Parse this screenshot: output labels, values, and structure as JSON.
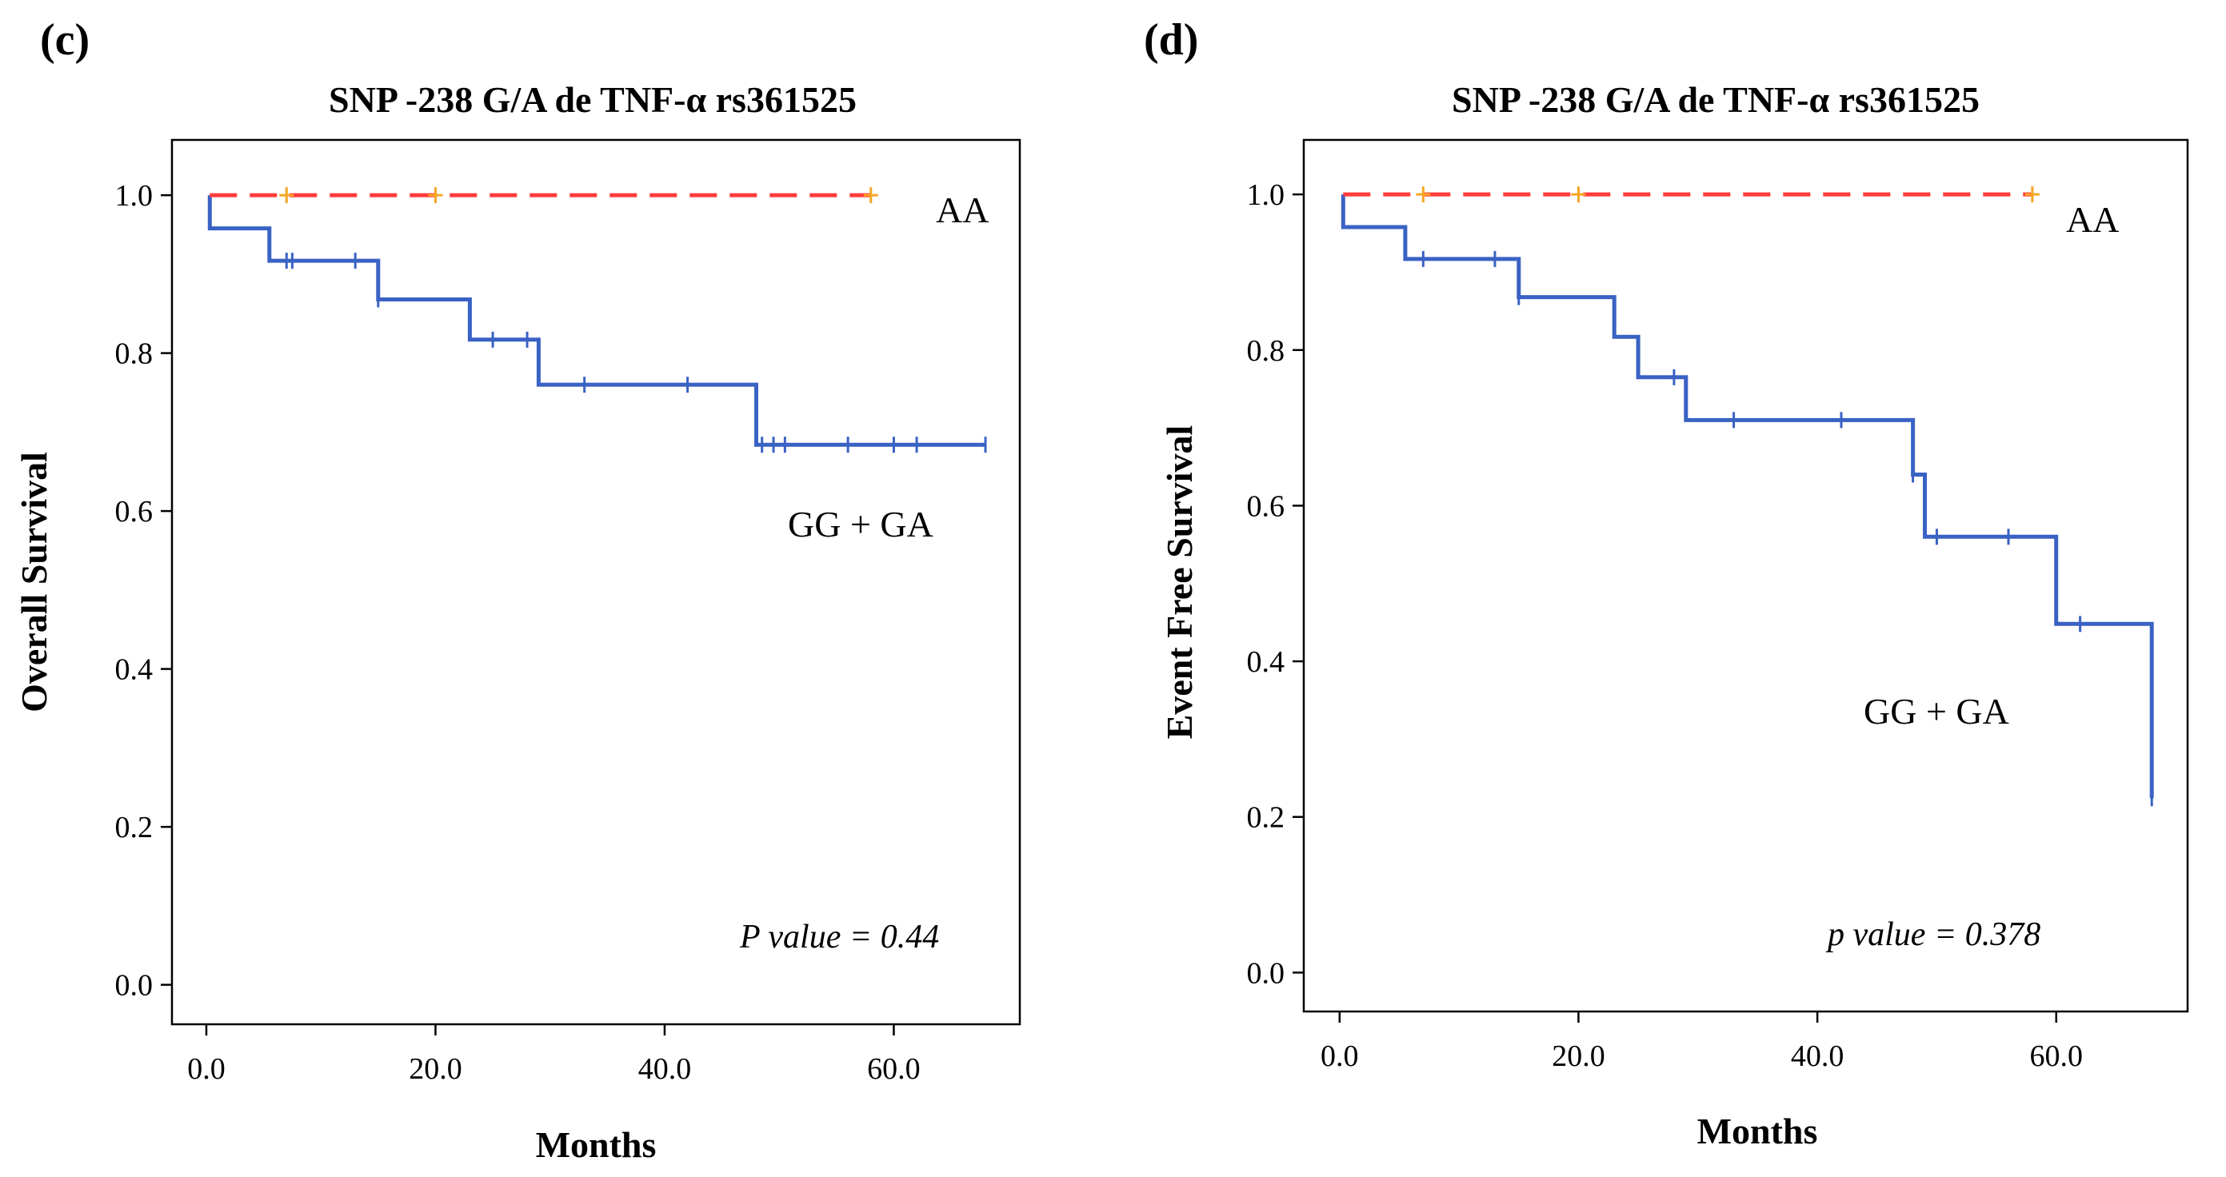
{
  "chart_data": [
    {
      "panel_label": "(c)",
      "type": "line",
      "subtype": "kaplan-meier",
      "title": "SNP -238 G/A de TNF-α  rs361525",
      "xlabel": "Months",
      "ylabel": "Overall Survival",
      "xlim": [
        -3,
        71
      ],
      "ylim": [
        -0.05,
        1.07
      ],
      "xticks": [
        0,
        20,
        40,
        60
      ],
      "xtick_labels": [
        "0.0",
        "20.0",
        "40.0",
        "60.0"
      ],
      "yticks": [
        0.0,
        0.2,
        0.4,
        0.6,
        0.8,
        1.0
      ],
      "ytick_labels": [
        "0.0",
        "0.2",
        "0.4",
        "0.6",
        "0.8",
        "1.0"
      ],
      "grid": false,
      "annotation": "P value = 0.44",
      "series": [
        {
          "name": "AA",
          "color": "#ff3b3b",
          "censor_color": "#f5a623",
          "dashed": true,
          "steps": [
            [
              0.3,
              1.0
            ],
            [
              58,
              1.0
            ]
          ],
          "censors": [
            [
              7,
              1.0
            ],
            [
              20,
              1.0
            ],
            [
              58,
              1.0
            ]
          ]
        },
        {
          "name": "GG + GA",
          "color": "#3a62c4",
          "censor_color": "#3a62c4",
          "dashed": false,
          "steps": [
            [
              0.3,
              1.0
            ],
            [
              0.3,
              0.958
            ],
            [
              5.5,
              0.958
            ],
            [
              5.5,
              0.917
            ],
            [
              15,
              0.917
            ],
            [
              15,
              0.868
            ],
            [
              23,
              0.868
            ],
            [
              23,
              0.817
            ],
            [
              29,
              0.817
            ],
            [
              29,
              0.76
            ],
            [
              48,
              0.76
            ],
            [
              48,
              0.684
            ],
            [
              68,
              0.684
            ]
          ],
          "censors": [
            [
              7,
              0.917
            ],
            [
              7.5,
              0.917
            ],
            [
              13,
              0.917
            ],
            [
              15,
              0.868
            ],
            [
              25,
              0.817
            ],
            [
              28,
              0.817
            ],
            [
              33,
              0.76
            ],
            [
              42,
              0.76
            ],
            [
              48.5,
              0.684
            ],
            [
              49.5,
              0.684
            ],
            [
              50.5,
              0.684
            ],
            [
              56,
              0.684
            ],
            [
              60,
              0.684
            ],
            [
              62,
              0.684
            ],
            [
              68,
              0.684
            ]
          ]
        }
      ]
    },
    {
      "panel_label": "(d)",
      "type": "line",
      "subtype": "kaplan-meier",
      "title": "SNP -238 G/A de TNF-α  rs361525",
      "xlabel": "Months",
      "ylabel": "Event Free Survival",
      "xlim": [
        -3,
        71
      ],
      "ylim": [
        -0.05,
        1.07
      ],
      "xticks": [
        0,
        20,
        40,
        60
      ],
      "xtick_labels": [
        "0.0",
        "20.0",
        "40.0",
        "60.0"
      ],
      "yticks": [
        0.0,
        0.2,
        0.4,
        0.6,
        0.8,
        1.0
      ],
      "ytick_labels": [
        "0.0",
        "0.2",
        "0.4",
        "0.6",
        "0.8",
        "1.0"
      ],
      "grid": false,
      "annotation": "p value = 0.378",
      "series": [
        {
          "name": "AA",
          "color": "#ff3b3b",
          "censor_color": "#f5a623",
          "dashed": true,
          "steps": [
            [
              0.3,
              1.0
            ],
            [
              58,
              1.0
            ]
          ],
          "censors": [
            [
              7,
              1.0
            ],
            [
              20,
              1.0
            ],
            [
              58,
              1.0
            ]
          ]
        },
        {
          "name": "GG + GA",
          "color": "#3a62c4",
          "censor_color": "#3a62c4",
          "dashed": false,
          "steps": [
            [
              0.3,
              1.0
            ],
            [
              0.3,
              0.958
            ],
            [
              5.5,
              0.958
            ],
            [
              5.5,
              0.917
            ],
            [
              15,
              0.917
            ],
            [
              15,
              0.868
            ],
            [
              23,
              0.868
            ],
            [
              23,
              0.817
            ],
            [
              25,
              0.817
            ],
            [
              25,
              0.765
            ],
            [
              29,
              0.765
            ],
            [
              29,
              0.71
            ],
            [
              48,
              0.71
            ],
            [
              48,
              0.64
            ],
            [
              49,
              0.64
            ],
            [
              49,
              0.56
            ],
            [
              60,
              0.56
            ],
            [
              60,
              0.448
            ],
            [
              68,
              0.448
            ],
            [
              68,
              0.224
            ]
          ],
          "censors": [
            [
              7,
              0.917
            ],
            [
              13,
              0.917
            ],
            [
              15,
              0.868
            ],
            [
              28,
              0.765
            ],
            [
              33,
              0.71
            ],
            [
              42,
              0.71
            ],
            [
              48,
              0.64
            ],
            [
              50,
              0.56
            ],
            [
              56,
              0.56
            ],
            [
              62,
              0.448
            ],
            [
              68,
              0.224
            ]
          ]
        }
      ]
    }
  ]
}
